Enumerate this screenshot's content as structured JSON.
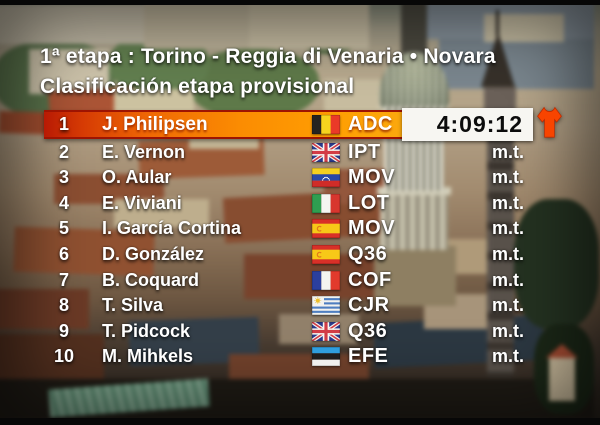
{
  "header": {
    "stage_title": "1ª etapa : Torino - Reggia di Venaria • Novara",
    "classification_title": "Clasificación etapa provisional"
  },
  "standings": {
    "leader": {
      "rank": "1",
      "rider": "J. Philipsen",
      "country": "belgium",
      "team": "ADC",
      "time": "4:09:12"
    },
    "rows": [
      {
        "rank": "2",
        "rider": "E. Vernon",
        "country": "great-britain",
        "team": "IPT",
        "time": "m.t."
      },
      {
        "rank": "3",
        "rider": "O. Aular",
        "country": "venezuela",
        "team": "MOV",
        "time": "m.t."
      },
      {
        "rank": "4",
        "rider": "E. Viviani",
        "country": "italy",
        "team": "LOT",
        "time": "m.t."
      },
      {
        "rank": "5",
        "rider": "I. García Cortina",
        "country": "spain",
        "team": "MOV",
        "time": "m.t."
      },
      {
        "rank": "6",
        "rider": "D. González",
        "country": "spain",
        "team": "Q36",
        "time": "m.t."
      },
      {
        "rank": "7",
        "rider": "B. Coquard",
        "country": "france",
        "team": "COF",
        "time": "m.t."
      },
      {
        "rank": "8",
        "rider": "T. Silva",
        "country": "uruguay",
        "team": "CJR",
        "time": "m.t."
      },
      {
        "rank": "9",
        "rider": "T. Pidcock",
        "country": "great-britain",
        "team": "Q36",
        "time": "m.t."
      },
      {
        "rank": "10",
        "rider": "M. Mihkels",
        "country": "estonia",
        "team": "EFE",
        "time": "m.t."
      }
    ]
  },
  "colors": {
    "leader_bar_left_red": "#b81a04",
    "leader_bar_orange": "#ff9f02",
    "leader_bar_right_yellow": "#d9b83c",
    "time_box_background": "#f7f6f2",
    "time_text": "#0c0c0c",
    "leader_jersey_orange": "#f84400",
    "row_text": "#ffffff"
  }
}
